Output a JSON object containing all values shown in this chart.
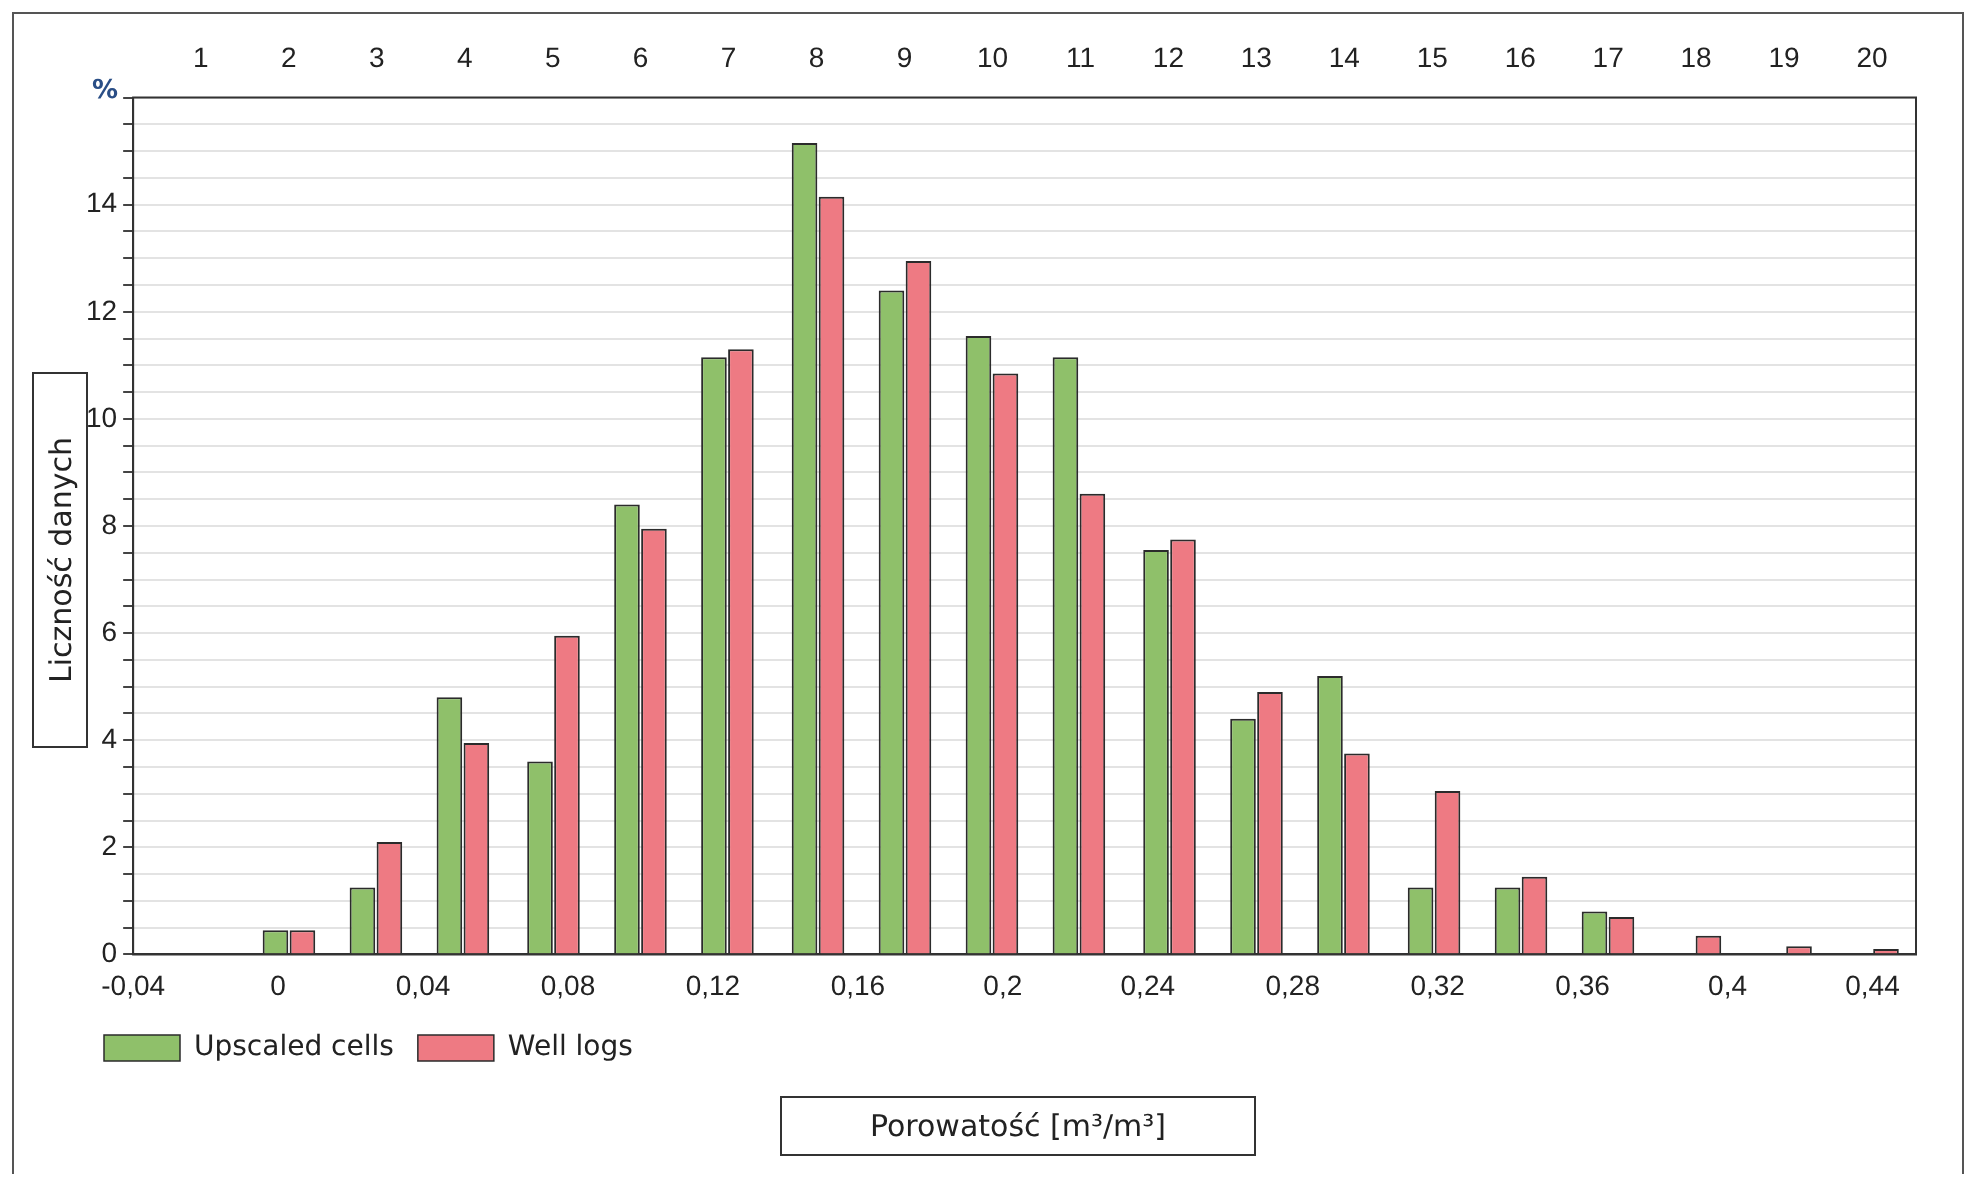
{
  "chart_data": {
    "type": "bar",
    "xlabel": "Porowatość [m³/m³]",
    "ylabel": "Liczność  danych",
    "annotations": [
      "%"
    ],
    "x": [
      -0.021,
      0.003,
      0.027,
      0.051,
      0.076,
      0.1,
      0.124,
      0.149,
      0.173,
      0.197,
      0.221,
      0.246,
      0.27,
      0.294,
      0.319,
      0.343,
      0.367,
      0.391,
      0.416,
      0.44
    ],
    "series": [
      {
        "name": "Upscaled cells",
        "color": "#8fc06a",
        "values": [
          0,
          0.45,
          1.25,
          4.8,
          3.6,
          8.4,
          11.15,
          15.15,
          12.4,
          11.55,
          11.15,
          7.55,
          4.4,
          5.2,
          1.25,
          1.25,
          0.8,
          0,
          0,
          0
        ]
      },
      {
        "name": "Well logs",
        "color": "#ee7a83",
        "values": [
          0,
          0.45,
          2.1,
          3.95,
          5.95,
          7.95,
          11.3,
          14.15,
          12.95,
          10.85,
          8.6,
          7.75,
          4.9,
          3.75,
          3.05,
          1.45,
          0.7,
          0.35,
          0.15,
          0.1
        ]
      }
    ],
    "xlim": [
      -0.04,
      0.452
    ],
    "xticks": [
      {
        "value": -0.04,
        "label": "-0,04"
      },
      0,
      {
        "value": 0.04,
        "label": "0,04"
      },
      {
        "value": 0.08,
        "label": "0,08"
      },
      {
        "value": 0.12,
        "label": "0,12"
      },
      {
        "value": 0.16,
        "label": "0,16"
      },
      {
        "value": 0.2,
        "label": "0,2"
      },
      {
        "value": 0.24,
        "label": "0,24"
      },
      {
        "value": 0.28,
        "label": "0,28"
      },
      {
        "value": 0.32,
        "label": "0,32"
      },
      {
        "value": 0.36,
        "label": "0,36"
      },
      {
        "value": 0.4,
        "label": "0,4"
      },
      {
        "value": 0.44,
        "label": "0,44"
      }
    ],
    "x2lim": [
      0.23,
      20.5
    ],
    "x2ticks": [
      1,
      2,
      3,
      4,
      5,
      6,
      7,
      8,
      9,
      10,
      11,
      12,
      13,
      14,
      15,
      16,
      17,
      18,
      19,
      20
    ],
    "ylim": [
      0,
      16
    ],
    "yticks": [
      0,
      {
        "value": 0.5,
        "label": null
      },
      {
        "value": 1,
        "label": null
      },
      {
        "value": 1.5,
        "label": null
      },
      2,
      {
        "value": 2.5,
        "label": null
      },
      {
        "value": 3,
        "label": null
      },
      {
        "value": 3.5,
        "label": null
      },
      4,
      {
        "value": 4.5,
        "label": null
      },
      {
        "value": 5,
        "label": null
      },
      {
        "value": 5.5,
        "label": null
      },
      6,
      {
        "value": 6.5,
        "label": null
      },
      {
        "value": 7,
        "label": null
      },
      {
        "value": 7.5,
        "label": null
      },
      8,
      {
        "value": 8.5,
        "label": null
      },
      {
        "value": 9,
        "label": null
      },
      {
        "value": 9.5,
        "label": null
      },
      10,
      {
        "value": 10.5,
        "label": null
      },
      {
        "value": 11,
        "label": null
      },
      {
        "value": 11.5,
        "label": null
      },
      12,
      {
        "value": 12.5,
        "label": null
      },
      {
        "value": 13,
        "label": null
      },
      {
        "value": 13.5,
        "label": null
      },
      14,
      {
        "value": 14.5,
        "label": null
      },
      {
        "value": 15,
        "label": null
      },
      {
        "value": 15.5,
        "label": null
      },
      {
        "value": 16,
        "label": null
      }
    ],
    "grid": "y",
    "legend": "bottom left"
  }
}
